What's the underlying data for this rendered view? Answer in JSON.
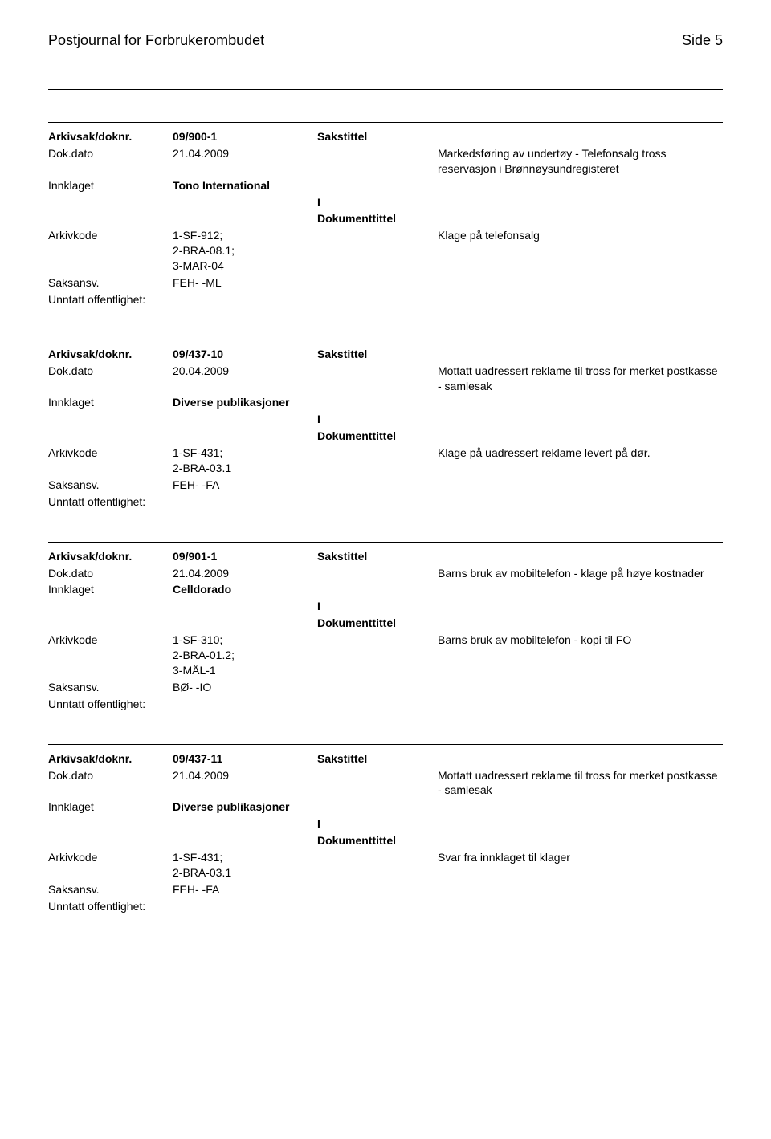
{
  "header": {
    "title": "Postjournal for Forbrukerombudet",
    "page_label": "Side 5"
  },
  "labels": {
    "arkivsak": "Arkivsak/doknr.",
    "dokdato": "Dok.dato",
    "innklaget": "Innklaget",
    "arkivkode": "Arkivkode",
    "saksansv": "Saksansv.",
    "unntatt": "Unntatt offentlighet:",
    "sakstittel": "Sakstittel",
    "dokumenttittel": "Dokumenttittel"
  },
  "entries": [
    {
      "doknr": "09/900-1",
      "dokdato": "21.04.2009",
      "sakstittel": "Markedsføring av undertøy - Telefonsalg tross reservasjon i Brønnøysundregisteret",
      "innklaget": "Tono International",
      "io": "I",
      "arkivkode": "1-SF-912;\n2-BRA-08.1;\n3-MAR-04",
      "dokumenttittel": "Klage på telefonsalg",
      "saksansv": "FEH- -ML",
      "unntatt": ""
    },
    {
      "doknr": "09/437-10",
      "dokdato": "20.04.2009",
      "sakstittel": "Mottatt uadressert reklame til tross for merket postkasse - samlesak",
      "innklaget": "Diverse publikasjoner",
      "io": "I",
      "arkivkode": "1-SF-431;\n2-BRA-03.1",
      "dokumenttittel": "Klage på uadressert reklame levert på dør.",
      "saksansv": "FEH- -FA",
      "unntatt": ""
    },
    {
      "doknr": "09/901-1",
      "dokdato": "21.04.2009",
      "sakstittel": "Barns bruk av mobiltelefon - klage på høye kostnader",
      "innklaget": "Celldorado",
      "io": "I",
      "arkivkode": "1-SF-310;\n2-BRA-01.2;\n3-MÅL-1",
      "dokumenttittel": "Barns bruk av mobiltelefon - kopi til FO",
      "saksansv": "BØ- -IO",
      "unntatt": ""
    },
    {
      "doknr": "09/437-11",
      "dokdato": "21.04.2009",
      "sakstittel": "Mottatt uadressert reklame til tross for merket postkasse - samlesak",
      "innklaget": "Diverse publikasjoner",
      "io": "I",
      "arkivkode": "1-SF-431;\n2-BRA-03.1",
      "dokumenttittel": "Svar fra innklaget til klager",
      "saksansv": "FEH- -FA",
      "unntatt": ""
    }
  ]
}
